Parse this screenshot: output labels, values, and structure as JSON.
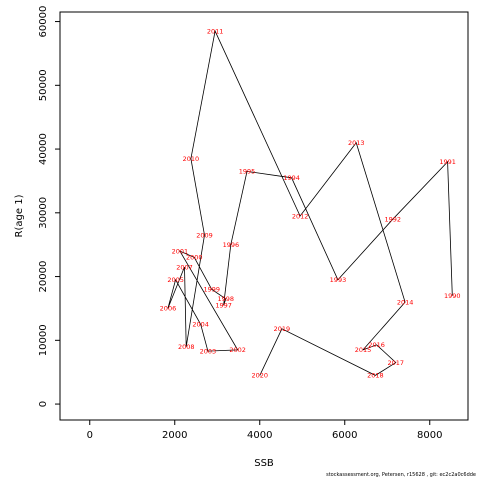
{
  "chart_data": {
    "type": "line",
    "xlabel": "SSB",
    "ylabel": "R(age 1)",
    "xlim": [
      -700,
      8900
    ],
    "ylim": [
      -2500,
      61500
    ],
    "x_ticks": [
      0,
      2000,
      4000,
      6000,
      8000
    ],
    "y_ticks": [
      0,
      10000,
      20000,
      30000,
      40000,
      50000,
      60000
    ],
    "line_color": "#000000",
    "label_color": "#ff0000",
    "grid": false,
    "points": [
      {
        "year": "1990",
        "ssb": 8530,
        "r": 17000
      },
      {
        "year": "1991",
        "ssb": 8420,
        "r": 38000
      },
      {
        "year": "1992",
        "ssb": 7130,
        "r": 29000
      },
      {
        "year": "1993",
        "ssb": 5840,
        "r": 19500
      },
      {
        "year": "1994",
        "ssb": 4750,
        "r": 35500
      },
      {
        "year": "1995",
        "ssb": 3700,
        "r": 36500
      },
      {
        "year": "1996",
        "ssb": 3320,
        "r": 25000
      },
      {
        "year": "1997",
        "ssb": 3150,
        "r": 15500
      },
      {
        "year": "1998",
        "ssb": 3200,
        "r": 16500
      },
      {
        "year": "1999",
        "ssb": 2870,
        "r": 18000
      },
      {
        "year": "2000",
        "ssb": 2460,
        "r": 23000
      },
      {
        "year": "2001",
        "ssb": 2120,
        "r": 24000
      },
      {
        "year": "2002",
        "ssb": 3480,
        "r": 8500
      },
      {
        "year": "2003",
        "ssb": 2780,
        "r": 8300
      },
      {
        "year": "2004",
        "ssb": 2610,
        "r": 12500
      },
      {
        "year": "2005",
        "ssb": 2020,
        "r": 19500
      },
      {
        "year": "2006",
        "ssb": 1840,
        "r": 15000
      },
      {
        "year": "2007",
        "ssb": 2230,
        "r": 21500
      },
      {
        "year": "2008",
        "ssb": 2270,
        "r": 9000
      },
      {
        "year": "2009",
        "ssb": 2700,
        "r": 26500
      },
      {
        "year": "2010",
        "ssb": 2380,
        "r": 38500
      },
      {
        "year": "2011",
        "ssb": 2950,
        "r": 58500
      },
      {
        "year": "2012",
        "ssb": 4950,
        "r": 29500
      },
      {
        "year": "2013",
        "ssb": 6270,
        "r": 41000
      },
      {
        "year": "2014",
        "ssb": 7420,
        "r": 16000
      },
      {
        "year": "2015",
        "ssb": 6430,
        "r": 8500
      },
      {
        "year": "2016",
        "ssb": 6750,
        "r": 9300
      },
      {
        "year": "2017",
        "ssb": 7200,
        "r": 6500
      },
      {
        "year": "2018",
        "ssb": 6720,
        "r": 4500
      },
      {
        "year": "2019",
        "ssb": 4520,
        "r": 11800
      },
      {
        "year": "2020",
        "ssb": 4000,
        "r": 4500
      }
    ]
  },
  "footer_text": "stockassessment.org, Petersen, r15628 , git: ec2c2a0c6dde"
}
